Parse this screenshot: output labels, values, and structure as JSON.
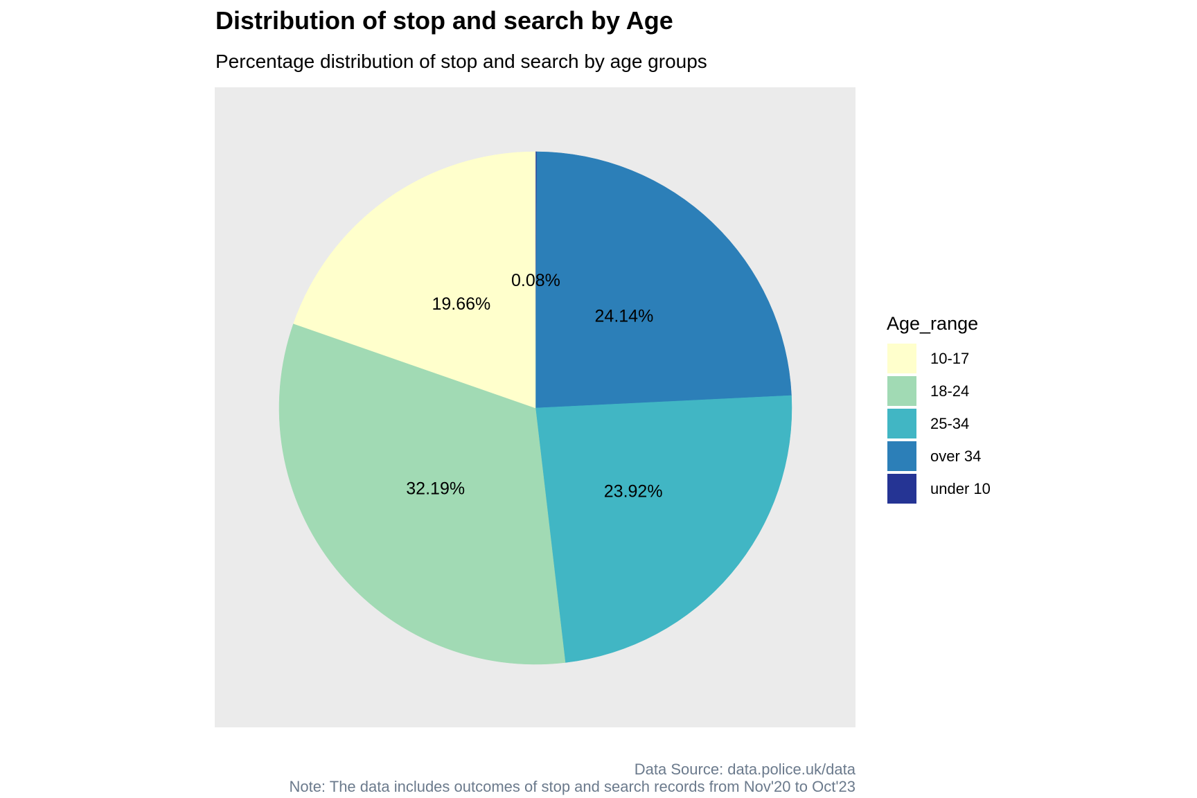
{
  "chart_data": {
    "type": "pie",
    "title": "Distribution of stop and search by Age",
    "subtitle": "Percentage distribution of stop and search by age groups",
    "legend": {
      "title": "Age_range",
      "placement": "right",
      "entries": [
        "10-17",
        "18-24",
        "25-34",
        "over 34",
        "under 10"
      ]
    },
    "slices": [
      {
        "category": "under 10",
        "value": 0.08,
        "label": "0.08%",
        "color": "#253494"
      },
      {
        "category": "over 34",
        "value": 24.14,
        "label": "24.14%",
        "color": "#2c7fb8"
      },
      {
        "category": "25-34",
        "value": 23.92,
        "label": "23.92%",
        "color": "#41b6c4"
      },
      {
        "category": "18-24",
        "value": 32.19,
        "label": "32.19%",
        "color": "#a1dab4"
      },
      {
        "category": "10-17",
        "value": 19.66,
        "label": "19.66%",
        "color": "#ffffcc"
      }
    ],
    "panel_background": "#ebebeb",
    "caption": [
      "Data Source: data.police.uk/data",
      "Note: The data includes outcomes of stop and search records from Nov'20 to Oct'23"
    ]
  }
}
